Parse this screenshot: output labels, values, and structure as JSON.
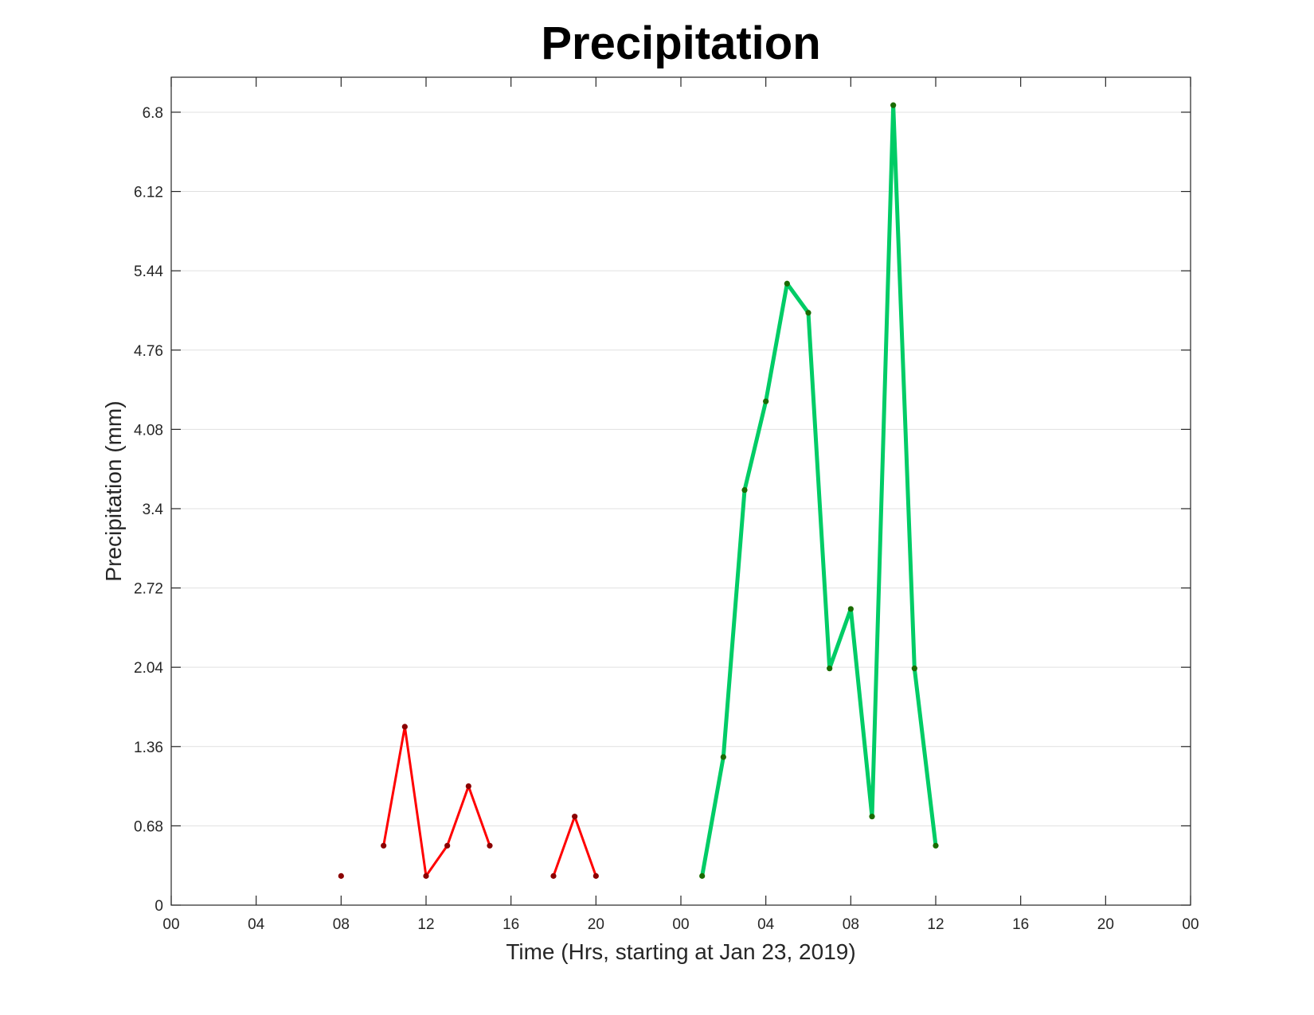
{
  "chart_data": {
    "type": "line",
    "title": "Precipitation",
    "xlabel": "Time (Hrs, starting at Jan 23, 2019)",
    "ylabel": "Precipitation (mm)",
    "xlim": [
      0,
      48
    ],
    "ylim": [
      0,
      7.1
    ],
    "x_ticks": [
      0,
      4,
      8,
      12,
      16,
      20,
      24,
      28,
      32,
      36,
      40,
      44,
      48
    ],
    "x_tick_labels": [
      "00",
      "04",
      "08",
      "12",
      "16",
      "20",
      "00",
      "04",
      "08",
      "12",
      "16",
      "20",
      "00"
    ],
    "y_ticks": [
      0,
      0.68,
      1.36,
      2.04,
      2.72,
      3.4,
      4.08,
      4.76,
      5.44,
      6.12,
      6.8
    ],
    "y_tick_labels": [
      "0",
      "0.68",
      "1.36",
      "2.04",
      "2.72",
      "3.4",
      "4.08",
      "4.76",
      "5.44",
      "6.12",
      "6.8"
    ],
    "grid": "horizontal",
    "series": [
      {
        "color": "#ff0000",
        "marker_color": "#8b0000",
        "line_width": "thin",
        "x": [
          8,
          10,
          11,
          12,
          13,
          14,
          15,
          18,
          19,
          20
        ],
        "y": [
          0.25,
          0.51,
          1.53,
          0.25,
          0.51,
          1.02,
          0.51,
          0.25,
          0.76,
          0.25
        ],
        "segments": [
          [
            8
          ],
          [
            10,
            11,
            12,
            13,
            14,
            15
          ],
          [
            18,
            19,
            20
          ]
        ]
      },
      {
        "color": "#00cc66",
        "marker_color": "#1a6b00",
        "line_width": "thick",
        "x": [
          25,
          26,
          27,
          28,
          29,
          30,
          31,
          32,
          33,
          34,
          35,
          36
        ],
        "y": [
          0.25,
          1.27,
          3.56,
          4.32,
          5.33,
          5.08,
          2.03,
          2.54,
          0.76,
          6.86,
          2.03,
          0.51
        ],
        "segments": [
          [
            25,
            26,
            27,
            28,
            29,
            30,
            31,
            32,
            33,
            34,
            35,
            36
          ]
        ]
      }
    ]
  }
}
